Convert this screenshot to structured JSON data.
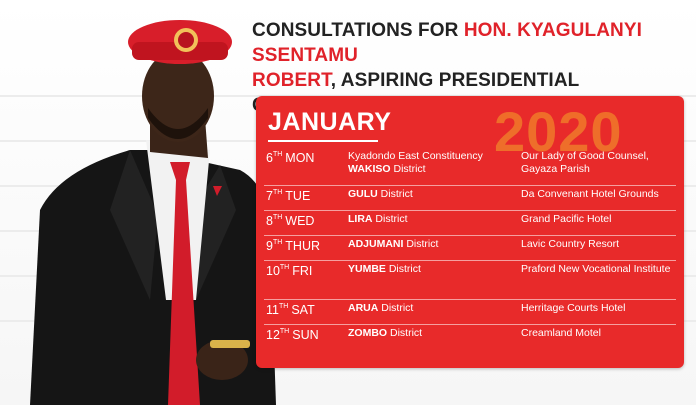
{
  "headline": {
    "prefix": "CONSULTATIONS FOR ",
    "name_line1": "HON. KYAGULANYI SSENTAMU",
    "name_line2": "ROBERT",
    "suffix": ", ASPIRING PRESIDENTIAL CANDIDATE"
  },
  "schedule": {
    "month": "JANUARY",
    "year": "2020",
    "rows": [
      {
        "day": "6",
        "sup": "TH",
        "weekday": "MON",
        "area_prefix": "Kyadondo East Constituency",
        "area_bold": "WAKISO",
        "area_suffix": " District",
        "venue": "Our Lady of Good Counsel, Gayaza Parish"
      },
      {
        "day": "7",
        "sup": "TH",
        "weekday": "TUE",
        "area_prefix": "",
        "area_bold": "GULU",
        "area_suffix": " District",
        "venue": "Da Convenant Hotel Grounds"
      },
      {
        "day": "8",
        "sup": "TH",
        "weekday": "WED",
        "area_prefix": "",
        "area_bold": "LIRA",
        "area_suffix": " District",
        "venue": "Grand Pacific Hotel"
      },
      {
        "day": "9",
        "sup": "TH",
        "weekday": "THUR",
        "area_prefix": "",
        "area_bold": "ADJUMANI",
        "area_suffix": " District",
        "venue": "Lavic Country Resort"
      },
      {
        "day": "10",
        "sup": "TH",
        "weekday": "FRI",
        "area_prefix": "",
        "area_bold": "YUMBE",
        "area_suffix": " District",
        "venue": "Praford New Vocational Institute"
      },
      {
        "day": "11",
        "sup": "TH",
        "weekday": "SAT",
        "area_prefix": "",
        "area_bold": "ARUA",
        "area_suffix": " District",
        "venue": "Herritage Courts Hotel"
      },
      {
        "day": "12",
        "sup": "TH",
        "weekday": "SUN",
        "area_prefix": "",
        "area_bold": "ZOMBO",
        "area_suffix": " District",
        "venue": "Creamland Motel"
      }
    ]
  },
  "colors": {
    "accent": "#e82a2a",
    "year": "#f07a2a",
    "beret": "#d81e2a"
  }
}
